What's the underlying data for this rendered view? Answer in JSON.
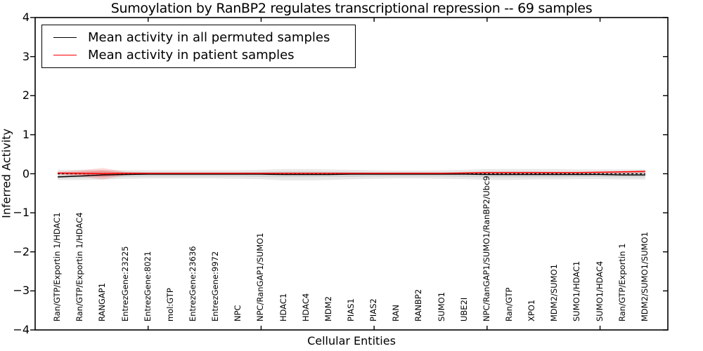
{
  "figure": {
    "title": "Sumoylation by RanBP2 regulates transcriptional repression -- 69 samples",
    "xlabel": "Cellular Entities",
    "ylabel": "Inferred Activity"
  },
  "legend": {
    "entries": [
      {
        "label": "Mean activity in all permuted samples",
        "color": "#000000"
      },
      {
        "label": "Mean activity in patient samples",
        "color": "#ff0000"
      }
    ]
  },
  "chart_data": {
    "type": "line",
    "title": "Sumoylation by RanBP2 regulates transcriptional repression -- 69 samples",
    "xlabel": "Cellular Entities",
    "ylabel": "Inferred Activity",
    "ylim": [
      -4,
      4
    ],
    "yticks": [
      4,
      3,
      2,
      1,
      0,
      -1,
      -2,
      -3,
      -4
    ],
    "ytick_labels": [
      "4",
      "3",
      "2",
      "1",
      "0",
      "−1",
      "−2",
      "−3",
      "−4"
    ],
    "xlim": [
      0,
      28
    ],
    "xticks": [
      5,
      10,
      15,
      20,
      25
    ],
    "grid": false,
    "legend_position": "upper left",
    "categories": [
      "Ran/GTP/Exportin 1/HDAC1",
      "Ran/GTP/Exportin 1/HDAC4",
      "RANGAP1",
      "EntrezGene:23225",
      "EntrezGene:8021",
      "mol:GTP",
      "EntrezGene:23636",
      "EntrezGene:9972",
      "NPC",
      "NPC/RanGAP1/SUMO1",
      "HDAC1",
      "HDAC4",
      "MDM2",
      "PIAS1",
      "PIAS2",
      "RAN",
      "RANBP2",
      "SUMO1",
      "UBE2I",
      "NPC/RanGAP1/SUMO1/RanBP2/Ubc9",
      "Ran/GTP",
      "XPO1",
      "MDM2/SUMO1",
      "SUMO1/HDAC1",
      "SUMO1/HDAC4",
      "Ran/GTP/Exportin 1",
      "MDM2/SUMO1/SUMO1"
    ],
    "series": [
      {
        "name": "Mean activity in all permuted samples",
        "color": "#000000",
        "values": [
          -0.08,
          -0.06,
          -0.03,
          -0.02,
          -0.01,
          -0.01,
          -0.01,
          -0.01,
          -0.01,
          -0.01,
          -0.02,
          -0.02,
          -0.02,
          -0.01,
          -0.01,
          -0.01,
          -0.01,
          -0.01,
          -0.01,
          -0.02,
          -0.02,
          -0.02,
          -0.02,
          -0.02,
          -0.02,
          -0.03,
          -0.03
        ]
      },
      {
        "name": "Mean activity in patient samples",
        "color": "#ff0000",
        "values": [
          0.02,
          0.01,
          0.0,
          0.01,
          0.01,
          0.01,
          0.01,
          0.01,
          0.01,
          0.01,
          0.01,
          0.01,
          0.01,
          0.01,
          0.01,
          0.01,
          0.01,
          0.01,
          0.02,
          0.03,
          0.03,
          0.03,
          0.03,
          0.03,
          0.04,
          0.05,
          0.06
        ]
      }
    ],
    "bands": [
      {
        "name": "permuted-outer",
        "color": "rgba(0,0,0,0.09)",
        "upper": [
          0.1,
          0.1,
          0.1,
          0.09,
          0.09,
          0.09,
          0.09,
          0.09,
          0.09,
          0.1,
          0.12,
          0.12,
          0.11,
          0.1,
          0.09,
          0.08,
          0.08,
          0.09,
          0.1,
          0.12,
          0.12,
          0.12,
          0.12,
          0.11,
          0.11,
          0.11,
          0.11
        ],
        "lower": [
          -0.16,
          -0.16,
          -0.15,
          -0.13,
          -0.12,
          -0.12,
          -0.12,
          -0.12,
          -0.13,
          -0.14,
          -0.17,
          -0.17,
          -0.16,
          -0.14,
          -0.13,
          -0.12,
          -0.12,
          -0.13,
          -0.14,
          -0.16,
          -0.16,
          -0.15,
          -0.15,
          -0.14,
          -0.14,
          -0.15,
          -0.15
        ]
      },
      {
        "name": "permuted-inner",
        "color": "rgba(0,0,0,0.09)",
        "upper": [
          0.03,
          0.03,
          0.04,
          0.04,
          0.04,
          0.04,
          0.04,
          0.04,
          0.04,
          0.05,
          0.06,
          0.06,
          0.05,
          0.05,
          0.04,
          0.04,
          0.04,
          0.04,
          0.05,
          0.06,
          0.06,
          0.06,
          0.05,
          0.05,
          0.05,
          0.05,
          0.05
        ],
        "lower": [
          -0.11,
          -0.1,
          -0.09,
          -0.08,
          -0.07,
          -0.07,
          -0.07,
          -0.07,
          -0.07,
          -0.08,
          -0.09,
          -0.09,
          -0.08,
          -0.08,
          -0.07,
          -0.07,
          -0.07,
          -0.07,
          -0.08,
          -0.09,
          -0.09,
          -0.09,
          -0.09,
          -0.08,
          -0.08,
          -0.09,
          -0.09
        ]
      },
      {
        "name": "patient-outer",
        "color": "rgba(255,0,0,0.14)",
        "upper": [
          0.05,
          0.09,
          0.15,
          0.05,
          0.03,
          0.03,
          0.03,
          0.03,
          0.03,
          0.03,
          0.04,
          0.04,
          0.04,
          0.03,
          0.03,
          0.03,
          0.03,
          0.03,
          0.04,
          0.05,
          0.05,
          0.05,
          0.05,
          0.05,
          0.06,
          0.07,
          0.09
        ],
        "lower": [
          -0.02,
          -0.07,
          -0.15,
          -0.04,
          -0.01,
          -0.01,
          -0.01,
          -0.01,
          -0.01,
          -0.01,
          -0.02,
          -0.02,
          -0.02,
          -0.01,
          -0.01,
          -0.01,
          -0.01,
          -0.01,
          -0.01,
          -0.01,
          -0.01,
          -0.01,
          -0.01,
          -0.01,
          -0.01,
          0.0,
          0.02
        ],
        "annotation": "bulge at RANGAP1"
      },
      {
        "name": "patient-inner",
        "color": "rgba(255,0,0,0.22)",
        "upper": [
          0.03,
          0.05,
          0.08,
          0.03,
          0.02,
          0.02,
          0.02,
          0.02,
          0.02,
          0.02,
          0.02,
          0.02,
          0.02,
          0.02,
          0.02,
          0.02,
          0.02,
          0.02,
          0.03,
          0.04,
          0.04,
          0.04,
          0.04,
          0.04,
          0.05,
          0.06,
          0.07
        ],
        "lower": [
          0.0,
          -0.03,
          -0.08,
          -0.02,
          0.0,
          0.0,
          0.0,
          0.0,
          0.0,
          0.0,
          0.0,
          0.0,
          0.0,
          0.0,
          0.0,
          0.0,
          0.0,
          0.0,
          0.0,
          0.01,
          0.01,
          0.01,
          0.01,
          0.02,
          0.02,
          0.03,
          0.04
        ]
      }
    ],
    "zero_line": {
      "y": 0,
      "style": "dashed",
      "color": "#000000"
    }
  }
}
